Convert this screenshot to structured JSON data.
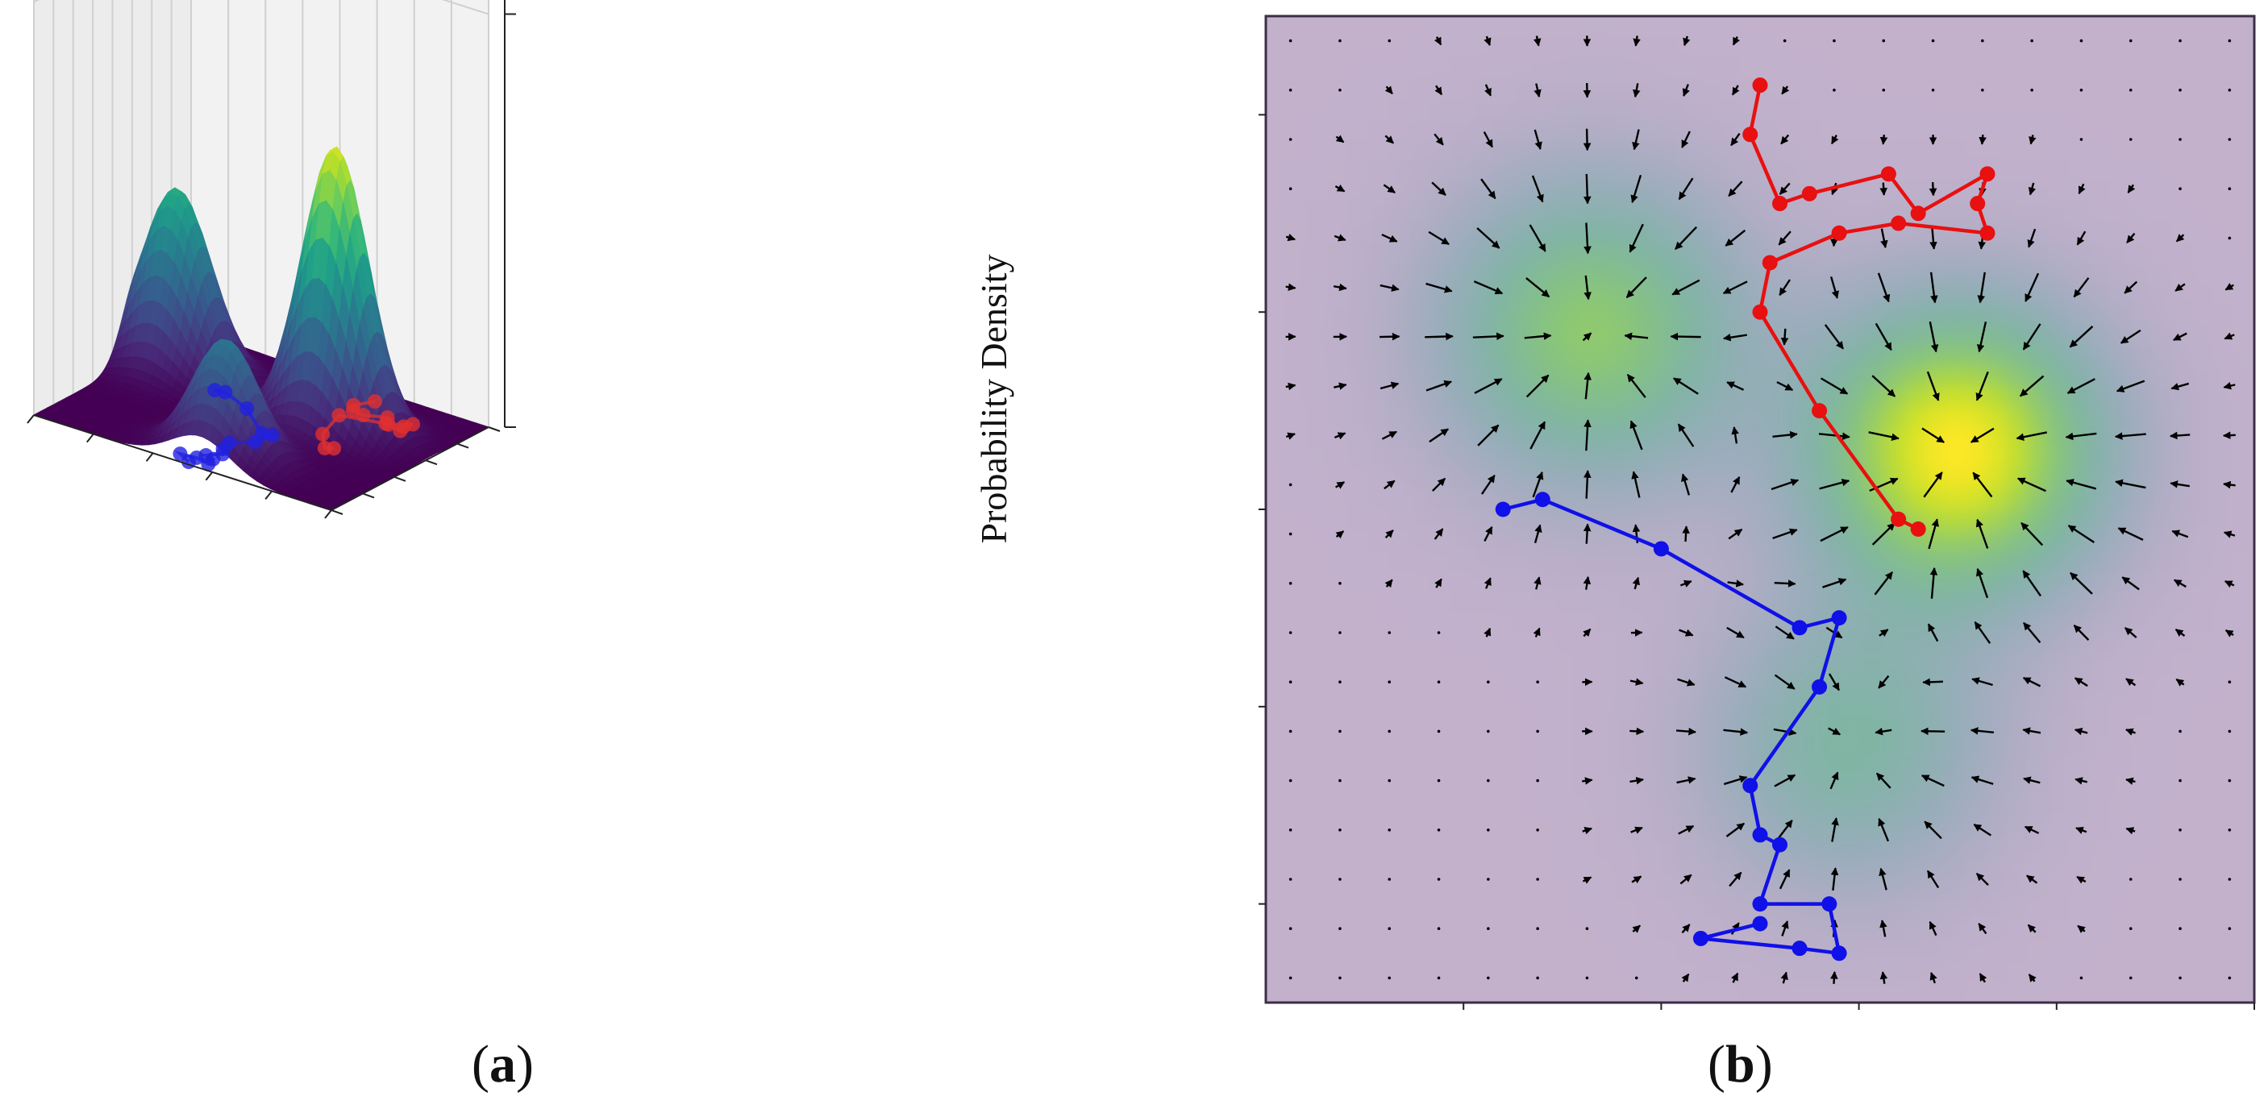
{
  "captions": {
    "a": "a",
    "b": "b"
  },
  "chart_data": [
    {
      "panel": "a",
      "type": "surface",
      "zlabel": "Probability Density",
      "colormap": "viridis",
      "grid": true,
      "tick_labels_visible": false,
      "peaks": [
        {
          "x": 1.2,
          "y": 6.8,
          "amplitude": 0.55,
          "sigma": 1.05
        },
        {
          "x": 6.8,
          "y": 6.3,
          "amplitude": 0.85,
          "sigma": 1.0
        },
        {
          "x": 5.6,
          "y": 1.6,
          "amplitude": 0.35,
          "sigma": 1.0
        }
      ],
      "trajectories": [
        {
          "name": "red",
          "color": "#e03030",
          "points": [
            [
              6.6,
              9.2
            ],
            [
              6.3,
              8.4
            ],
            [
              6.5,
              8.0
            ],
            [
              6.9,
              7.9
            ],
            [
              7.5,
              8.3
            ],
            [
              7.8,
              7.8
            ],
            [
              8.3,
              8.4
            ],
            [
              8.2,
              8.0
            ],
            [
              8.3,
              7.6
            ],
            [
              7.7,
              7.8
            ],
            [
              6.4,
              7.3
            ],
            [
              6.8,
              5.5
            ],
            [
              7.4,
              4.5
            ],
            [
              7.6,
              4.7
            ]
          ]
        },
        {
          "name": "blue",
          "color": "#2020e0",
          "points": [
            [
              2.8,
              6.2
            ],
            [
              3.1,
              6.3
            ],
            [
              4.2,
              5.6
            ],
            [
              5.5,
              4.1
            ],
            [
              5.8,
              4.2
            ],
            [
              5.7,
              3.3
            ],
            [
              5.2,
              2.6
            ],
            [
              5.3,
              2.0
            ],
            [
              5.5,
              1.6
            ],
            [
              5.2,
              1.1
            ],
            [
              5.5,
              1.0
            ],
            [
              5.6,
              0.5
            ],
            [
              5.1,
              0.7
            ],
            [
              4.6,
              0.6
            ],
            [
              5.1,
              0.2
            ]
          ]
        }
      ]
    },
    {
      "panel": "b",
      "type": "heatmap",
      "colormap": "viridis",
      "overlay": "quiver",
      "xlim": [
        0,
        10
      ],
      "ylim": [
        0,
        10
      ],
      "tick_labels_visible": false,
      "peaks": [
        {
          "x": 3.3,
          "y": 6.8,
          "amplitude": 0.55,
          "sigma": 1.05
        },
        {
          "x": 7.0,
          "y": 5.6,
          "amplitude": 0.85,
          "sigma": 1.0
        },
        {
          "x": 5.9,
          "y": 2.6,
          "amplitude": 0.35,
          "sigma": 1.0
        }
      ],
      "trajectories": [
        {
          "name": "red",
          "color": "#e81010",
          "points": [
            [
              5.0,
              9.3
            ],
            [
              4.9,
              8.8
            ],
            [
              5.2,
              8.1
            ],
            [
              5.5,
              8.2
            ],
            [
              6.3,
              8.4
            ],
            [
              6.6,
              8.0
            ],
            [
              7.3,
              8.4
            ],
            [
              7.2,
              8.1
            ],
            [
              7.3,
              7.8
            ],
            [
              6.4,
              7.9
            ],
            [
              5.8,
              7.8
            ],
            [
              5.1,
              7.5
            ],
            [
              5.0,
              7.0
            ],
            [
              5.6,
              6.0
            ],
            [
              6.4,
              4.9
            ],
            [
              6.6,
              4.8
            ]
          ]
        },
        {
          "name": "blue",
          "color": "#1010e8",
          "points": [
            [
              2.4,
              5.0
            ],
            [
              2.8,
              5.1
            ],
            [
              4.0,
              4.6
            ],
            [
              5.4,
              3.8
            ],
            [
              5.8,
              3.9
            ],
            [
              5.6,
              3.2
            ],
            [
              4.9,
              2.2
            ],
            [
              5.0,
              1.7
            ],
            [
              5.2,
              1.6
            ],
            [
              5.0,
              1.0
            ],
            [
              5.7,
              1.0
            ],
            [
              5.8,
              0.5
            ],
            [
              5.4,
              0.55
            ],
            [
              4.4,
              0.65
            ],
            [
              5.0,
              0.8
            ]
          ]
        }
      ]
    }
  ]
}
